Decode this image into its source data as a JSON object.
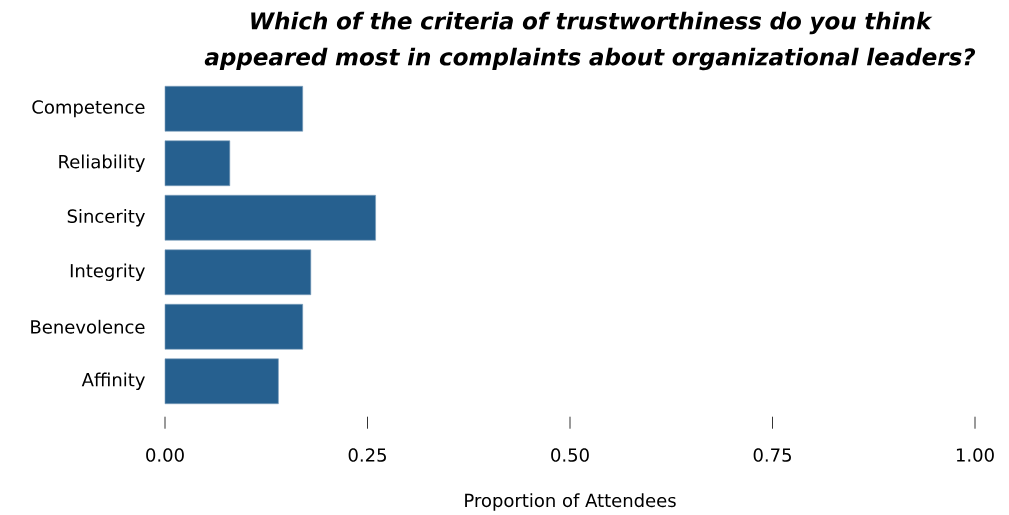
{
  "chart_data": {
    "type": "bar",
    "orientation": "horizontal",
    "title": "Which of the criteria of trustworthiness do you think appeared most in complaints about organizational leaders?",
    "xlabel": "Proportion of Attendees",
    "categories": [
      "Competence",
      "Reliability",
      "Sincerity",
      "Integrity",
      "Benevolence",
      "Affinity"
    ],
    "values": [
      0.17,
      0.08,
      0.26,
      0.18,
      0.17,
      0.14
    ],
    "color": "#26608f",
    "xlim": [
      0,
      1
    ],
    "xticks": [
      {
        "value": 0,
        "label": "0.00"
      },
      {
        "value": 0.25,
        "label": "0.25"
      },
      {
        "value": 0.5,
        "label": "0.50"
      },
      {
        "value": 0.75,
        "label": "0.75"
      },
      {
        "value": 1,
        "label": "1.00"
      }
    ]
  }
}
